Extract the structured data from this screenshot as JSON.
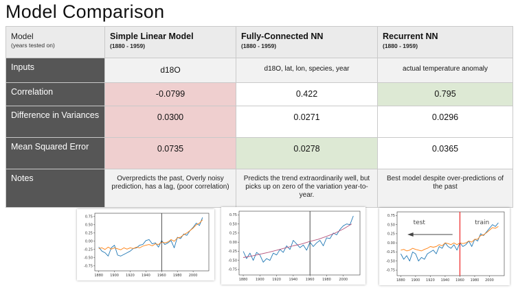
{
  "title": "Model Comparison",
  "header": {
    "label": "Model",
    "label_sub": "(years tested on)",
    "models": [
      {
        "name": "Simple Linear Model",
        "years": "(1880 - 1959)"
      },
      {
        "name": "Fully-Connected NN",
        "years": "(1880 - 1959)"
      },
      {
        "name": "Recurrent NN",
        "years": "(1880 - 1959)"
      }
    ]
  },
  "rows": {
    "inputs": {
      "label": "Inputs",
      "values": [
        "d18O",
        "d18O, lat, lon, species, year",
        "actual temperature anomaly"
      ]
    },
    "correlation": {
      "label": "Correlation",
      "values": [
        "-0.0799",
        "0.422",
        "0.795"
      ]
    },
    "variance": {
      "label": "Difference in Variances",
      "values": [
        "0.0300",
        "0.0271",
        "0.0296"
      ]
    },
    "mse": {
      "label": "Mean Squared Error",
      "values": [
        "0.0735",
        "0.0278",
        "0.0365"
      ]
    },
    "notes": {
      "label": "Notes",
      "values": [
        "Overpredicts the past, Overly noisy prediction, has a lag, (poor correlation)",
        "Predicts the trend extraordinarily well, but picks up on zero of the variation year-to-year.",
        "Best model despite over-predictions of the past"
      ]
    }
  },
  "colors": {
    "row_label_bg": "#565656",
    "bad_cell": "#efcfcf",
    "good_cell": "#dde9d4",
    "actual_line": "#1f77b4",
    "predicted_line": "#ff7f0e",
    "fcnn_line": "#b5527a",
    "split_marker": "#ee2222"
  },
  "plot_labels": {
    "test": "test",
    "train": "train"
  },
  "chart_data": [
    {
      "type": "line",
      "x_ticks": [
        "1880",
        "1900",
        "1920",
        "1940",
        "1960",
        "1980",
        "2000"
      ],
      "y_ticks": [
        "0.75",
        "0.50",
        "0.25",
        "0.00",
        "-0.25",
        "-0.50",
        "-0.75"
      ],
      "xlim": [
        1875,
        2020
      ],
      "ylim": [
        -0.9,
        0.85
      ],
      "split_year": 1960,
      "series": [
        {
          "color": "#1f77b4",
          "x": [
            1880,
            1884,
            1888,
            1892,
            1896,
            1900,
            1904,
            1908,
            1912,
            1916,
            1920,
            1924,
            1928,
            1932,
            1936,
            1940,
            1944,
            1948,
            1952,
            1956,
            1960,
            1964,
            1968,
            1972,
            1976,
            1980,
            1984,
            1988,
            1992,
            1996,
            2000,
            2004,
            2008,
            2012
          ],
          "values": [
            -0.18,
            -0.3,
            -0.35,
            -0.45,
            -0.2,
            -0.12,
            -0.42,
            -0.45,
            -0.4,
            -0.35,
            -0.3,
            -0.22,
            -0.2,
            -0.12,
            -0.1,
            0.02,
            0.05,
            -0.08,
            -0.05,
            -0.18,
            0.02,
            -0.1,
            -0.05,
            0.02,
            -0.2,
            0.12,
            0.08,
            0.22,
            0.18,
            0.32,
            0.42,
            0.55,
            0.48,
            0.72
          ]
        },
        {
          "color": "#ff7f0e",
          "x": [
            1880,
            1884,
            1888,
            1892,
            1896,
            1900,
            1904,
            1908,
            1912,
            1916,
            1920,
            1924,
            1928,
            1932,
            1936,
            1940,
            1944,
            1948,
            1952,
            1956,
            1960,
            1964,
            1968,
            1972,
            1976,
            1980,
            1984,
            1988,
            1992,
            1996,
            2000,
            2004,
            2008,
            2012
          ],
          "values": [
            -0.22,
            -0.2,
            -0.25,
            -0.18,
            -0.24,
            -0.2,
            -0.23,
            -0.26,
            -0.2,
            -0.24,
            -0.2,
            -0.22,
            -0.18,
            -0.2,
            -0.15,
            -0.12,
            -0.1,
            -0.14,
            -0.08,
            -0.1,
            -0.02,
            -0.05,
            -0.02,
            0.05,
            0.0,
            0.1,
            0.12,
            0.2,
            0.25,
            0.32,
            0.4,
            0.5,
            0.55,
            0.65
          ]
        }
      ]
    },
    {
      "type": "line",
      "x_ticks": [
        "1880",
        "1900",
        "1920",
        "1940",
        "1960",
        "1980",
        "2000"
      ],
      "y_ticks": [
        "0.75",
        "0.50",
        "0.25",
        "0.00",
        "-0.25",
        "-0.50",
        "-0.75"
      ],
      "xlim": [
        1875,
        2020
      ],
      "ylim": [
        -0.9,
        0.85
      ],
      "split_year": 1960,
      "series": [
        {
          "color": "#1f77b4",
          "x": [
            1880,
            1884,
            1888,
            1892,
            1896,
            1900,
            1904,
            1908,
            1912,
            1916,
            1920,
            1924,
            1928,
            1932,
            1936,
            1940,
            1944,
            1948,
            1952,
            1956,
            1960,
            1964,
            1968,
            1972,
            1976,
            1980,
            1984,
            1988,
            1992,
            1996,
            2000,
            2004,
            2008,
            2012
          ],
          "values": [
            -0.25,
            -0.45,
            -0.3,
            -0.5,
            -0.28,
            -0.35,
            -0.55,
            -0.45,
            -0.5,
            -0.3,
            -0.35,
            -0.2,
            -0.28,
            -0.1,
            -0.2,
            0.05,
            -0.05,
            -0.15,
            -0.08,
            -0.22,
            0.0,
            -0.12,
            -0.02,
            0.05,
            -0.1,
            0.12,
            0.1,
            0.25,
            0.2,
            0.35,
            0.45,
            0.5,
            0.48,
            0.72
          ]
        },
        {
          "color": "#b5527a",
          "x": [
            1880,
            1890,
            1900,
            1910,
            1920,
            1930,
            1940,
            1950,
            1960,
            1970,
            1980,
            1990,
            2000,
            2010
          ],
          "values": [
            -0.42,
            -0.38,
            -0.33,
            -0.28,
            -0.22,
            -0.16,
            -0.1,
            -0.05,
            0.02,
            0.08,
            0.16,
            0.25,
            0.36,
            0.5
          ]
        }
      ]
    },
    {
      "type": "line",
      "x_ticks": [
        "1880",
        "1900",
        "1920",
        "1940",
        "1960",
        "1980",
        "2000"
      ],
      "y_ticks": [
        "0.75",
        "0.50",
        "0.25",
        "0.00",
        "-0.25",
        "-0.50",
        "-0.75"
      ],
      "xlim": [
        1875,
        2020
      ],
      "ylim": [
        -0.9,
        0.85
      ],
      "split_year": 1960,
      "series": [
        {
          "color": "#1f77b4",
          "x": [
            1880,
            1884,
            1888,
            1892,
            1896,
            1900,
            1904,
            1908,
            1912,
            1916,
            1920,
            1924,
            1928,
            1932,
            1936,
            1940,
            1944,
            1948,
            1952,
            1956,
            1960,
            1964,
            1968,
            1972,
            1976,
            1980,
            1984,
            1988,
            1992,
            1996,
            2000,
            2004,
            2008,
            2012
          ],
          "values": [
            -0.3,
            -0.45,
            -0.35,
            -0.5,
            -0.25,
            -0.3,
            -0.5,
            -0.4,
            -0.45,
            -0.3,
            -0.25,
            -0.2,
            -0.3,
            -0.1,
            -0.15,
            0.0,
            -0.1,
            -0.15,
            -0.05,
            -0.2,
            0.0,
            -0.1,
            -0.05,
            0.05,
            -0.1,
            0.1,
            0.05,
            0.25,
            0.2,
            0.3,
            0.4,
            0.5,
            0.45,
            0.55
          ]
        },
        {
          "color": "#ff7f0e",
          "x": [
            1880,
            1884,
            1888,
            1892,
            1896,
            1900,
            1904,
            1908,
            1912,
            1916,
            1920,
            1924,
            1928,
            1932,
            1936,
            1940,
            1944,
            1948,
            1952,
            1956,
            1960,
            1964,
            1968,
            1972,
            1976,
            1980,
            1984,
            1988,
            1992,
            1996,
            2000,
            2004,
            2008,
            2012
          ],
          "values": [
            -0.2,
            -0.18,
            -0.22,
            -0.2,
            -0.15,
            -0.18,
            -0.2,
            -0.22,
            -0.18,
            -0.15,
            -0.1,
            -0.12,
            -0.1,
            -0.05,
            -0.08,
            0.0,
            -0.02,
            -0.05,
            0.0,
            -0.05,
            0.0,
            -0.02,
            0.0,
            0.05,
            0.02,
            0.1,
            0.1,
            0.2,
            0.22,
            0.28,
            0.35,
            0.42,
            0.4,
            0.45
          ]
        }
      ]
    }
  ]
}
